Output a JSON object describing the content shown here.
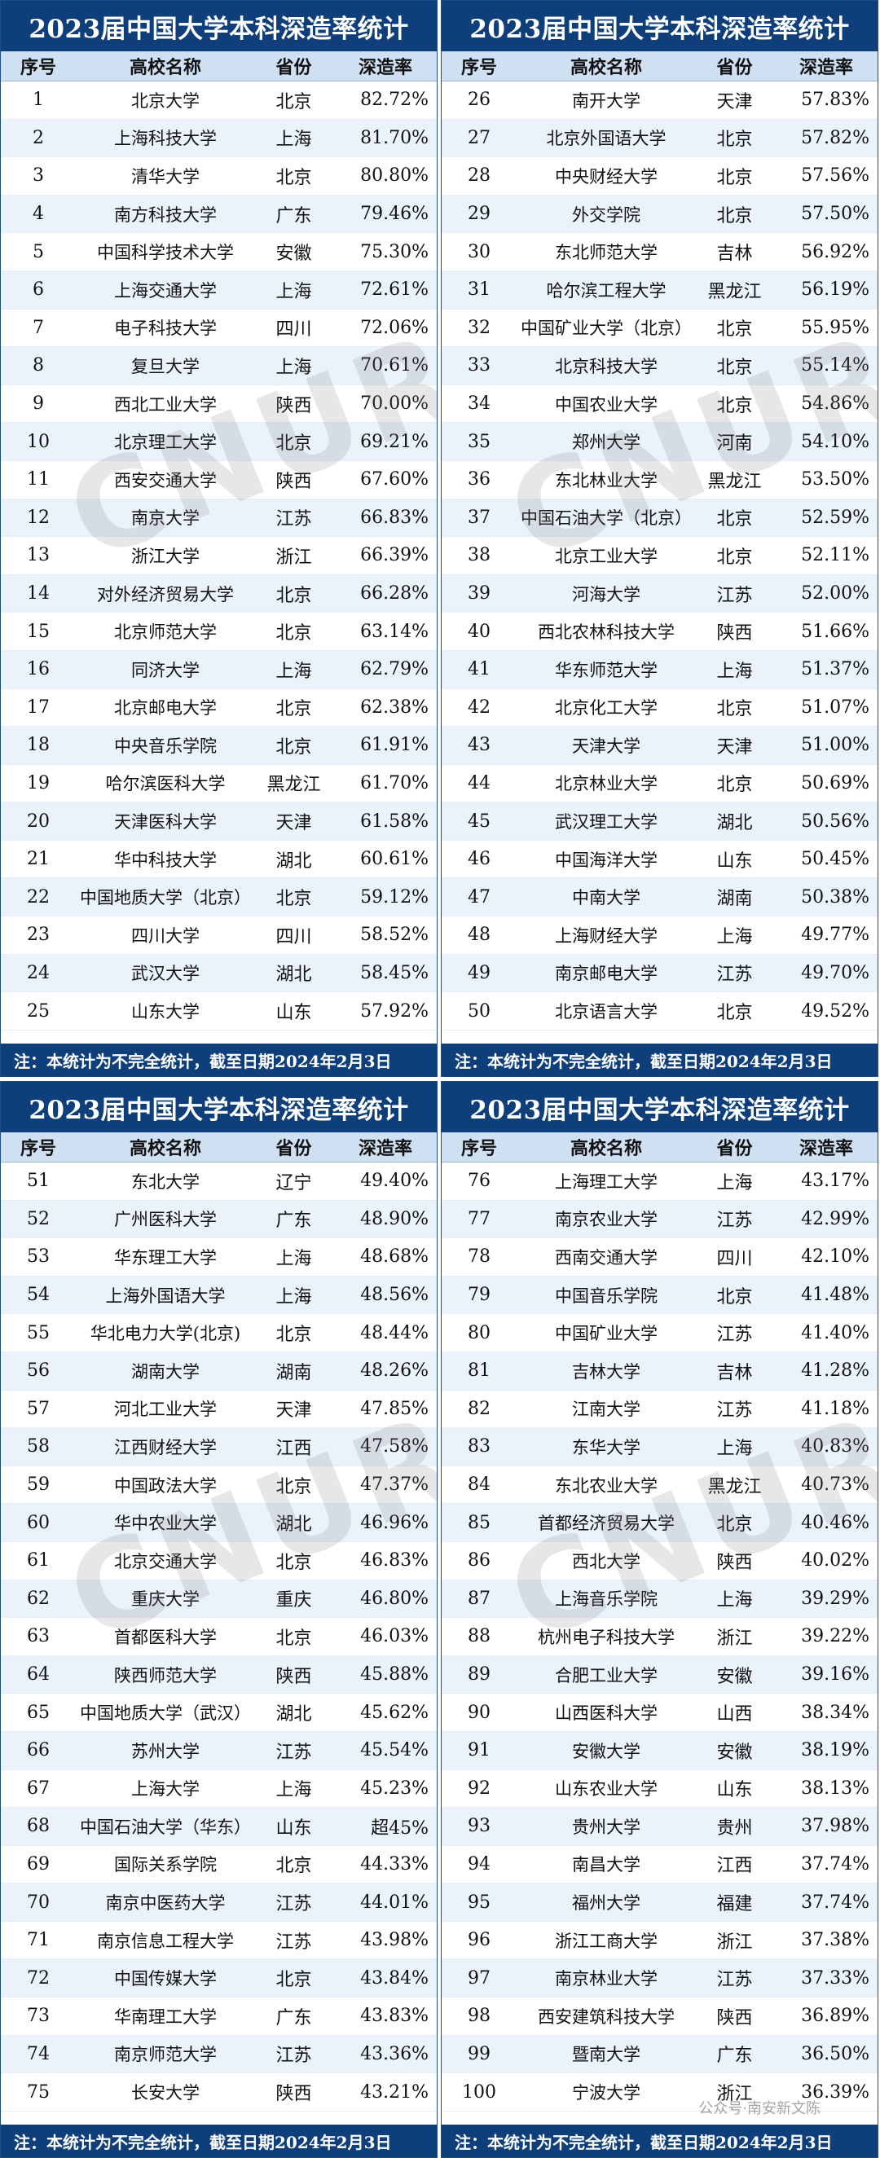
{
  "title": "2023届中国大学本科深造率统计",
  "headers": [
    "序号",
    "高校名称",
    "省份",
    "深造率"
  ],
  "note": "注：本统计为不完全统计，截至日期2024年2月3日",
  "watermark": "CNUR",
  "credit": "公众号·南安新文陈",
  "panels": [
    {
      "rows": [
        {
          "no": "1",
          "name": "北京大学",
          "prov": "北京",
          "rate": "82.72%"
        },
        {
          "no": "2",
          "name": "上海科技大学",
          "prov": "上海",
          "rate": "81.70%"
        },
        {
          "no": "3",
          "name": "清华大学",
          "prov": "北京",
          "rate": "80.80%"
        },
        {
          "no": "4",
          "name": "南方科技大学",
          "prov": "广东",
          "rate": "79.46%"
        },
        {
          "no": "5",
          "name": "中国科学技术大学",
          "prov": "安徽",
          "rate": "75.30%"
        },
        {
          "no": "6",
          "name": "上海交通大学",
          "prov": "上海",
          "rate": "72.61%"
        },
        {
          "no": "7",
          "name": "电子科技大学",
          "prov": "四川",
          "rate": "72.06%"
        },
        {
          "no": "8",
          "name": "复旦大学",
          "prov": "上海",
          "rate": "70.61%"
        },
        {
          "no": "9",
          "name": "西北工业大学",
          "prov": "陕西",
          "rate": "70.00%"
        },
        {
          "no": "10",
          "name": "北京理工大学",
          "prov": "北京",
          "rate": "69.21%"
        },
        {
          "no": "11",
          "name": "西安交通大学",
          "prov": "陕西",
          "rate": "67.60%"
        },
        {
          "no": "12",
          "name": "南京大学",
          "prov": "江苏",
          "rate": "66.83%"
        },
        {
          "no": "13",
          "name": "浙江大学",
          "prov": "浙江",
          "rate": "66.39%"
        },
        {
          "no": "14",
          "name": "对外经济贸易大学",
          "prov": "北京",
          "rate": "66.28%"
        },
        {
          "no": "15",
          "name": "北京师范大学",
          "prov": "北京",
          "rate": "63.14%"
        },
        {
          "no": "16",
          "name": "同济大学",
          "prov": "上海",
          "rate": "62.79%"
        },
        {
          "no": "17",
          "name": "北京邮电大学",
          "prov": "北京",
          "rate": "62.38%"
        },
        {
          "no": "18",
          "name": "中央音乐学院",
          "prov": "北京",
          "rate": "61.91%"
        },
        {
          "no": "19",
          "name": "哈尔滨医科大学",
          "prov": "黑龙江",
          "rate": "61.70%"
        },
        {
          "no": "20",
          "name": "天津医科大学",
          "prov": "天津",
          "rate": "61.58%"
        },
        {
          "no": "21",
          "name": "华中科技大学",
          "prov": "湖北",
          "rate": "60.61%"
        },
        {
          "no": "22",
          "name": "中国地质大学（北京）",
          "prov": "北京",
          "rate": "59.12%"
        },
        {
          "no": "23",
          "name": "四川大学",
          "prov": "四川",
          "rate": "58.52%"
        },
        {
          "no": "24",
          "name": "武汉大学",
          "prov": "湖北",
          "rate": "58.45%"
        },
        {
          "no": "25",
          "name": "山东大学",
          "prov": "山东",
          "rate": "57.92%"
        }
      ]
    },
    {
      "rows": [
        {
          "no": "26",
          "name": "南开大学",
          "prov": "天津",
          "rate": "57.83%"
        },
        {
          "no": "27",
          "name": "北京外国语大学",
          "prov": "北京",
          "rate": "57.82%"
        },
        {
          "no": "28",
          "name": "中央财经大学",
          "prov": "北京",
          "rate": "57.56%"
        },
        {
          "no": "29",
          "name": "外交学院",
          "prov": "北京",
          "rate": "57.50%"
        },
        {
          "no": "30",
          "name": "东北师范大学",
          "prov": "吉林",
          "rate": "56.92%"
        },
        {
          "no": "31",
          "name": "哈尔滨工程大学",
          "prov": "黑龙江",
          "rate": "56.19%"
        },
        {
          "no": "32",
          "name": "中国矿业大学（北京）",
          "prov": "北京",
          "rate": "55.95%"
        },
        {
          "no": "33",
          "name": "北京科技大学",
          "prov": "北京",
          "rate": "55.14%"
        },
        {
          "no": "34",
          "name": "中国农业大学",
          "prov": "北京",
          "rate": "54.86%"
        },
        {
          "no": "35",
          "name": "郑州大学",
          "prov": "河南",
          "rate": "54.10%"
        },
        {
          "no": "36",
          "name": "东北林业大学",
          "prov": "黑龙江",
          "rate": "53.50%"
        },
        {
          "no": "37",
          "name": "中国石油大学（北京）",
          "prov": "北京",
          "rate": "52.59%"
        },
        {
          "no": "38",
          "name": "北京工业大学",
          "prov": "北京",
          "rate": "52.11%"
        },
        {
          "no": "39",
          "name": "河海大学",
          "prov": "江苏",
          "rate": "52.00%"
        },
        {
          "no": "40",
          "name": "西北农林科技大学",
          "prov": "陕西",
          "rate": "51.66%"
        },
        {
          "no": "41",
          "name": "华东师范大学",
          "prov": "上海",
          "rate": "51.37%"
        },
        {
          "no": "42",
          "name": "北京化工大学",
          "prov": "北京",
          "rate": "51.07%"
        },
        {
          "no": "43",
          "name": "天津大学",
          "prov": "天津",
          "rate": "51.00%"
        },
        {
          "no": "44",
          "name": "北京林业大学",
          "prov": "北京",
          "rate": "50.69%"
        },
        {
          "no": "45",
          "name": "武汉理工大学",
          "prov": "湖北",
          "rate": "50.56%"
        },
        {
          "no": "46",
          "name": "中国海洋大学",
          "prov": "山东",
          "rate": "50.45%"
        },
        {
          "no": "47",
          "name": "中南大学",
          "prov": "湖南",
          "rate": "50.38%"
        },
        {
          "no": "48",
          "name": "上海财经大学",
          "prov": "上海",
          "rate": "49.77%"
        },
        {
          "no": "49",
          "name": "南京邮电大学",
          "prov": "江苏",
          "rate": "49.70%"
        },
        {
          "no": "50",
          "name": "北京语言大学",
          "prov": "北京",
          "rate": "49.52%"
        }
      ]
    },
    {
      "rows": [
        {
          "no": "51",
          "name": "东北大学",
          "prov": "辽宁",
          "rate": "49.40%"
        },
        {
          "no": "52",
          "name": "广州医科大学",
          "prov": "广东",
          "rate": "48.90%"
        },
        {
          "no": "53",
          "name": "华东理工大学",
          "prov": "上海",
          "rate": "48.68%"
        },
        {
          "no": "54",
          "name": "上海外国语大学",
          "prov": "上海",
          "rate": "48.56%"
        },
        {
          "no": "55",
          "name": "华北电力大学(北京)",
          "prov": "北京",
          "rate": "48.44%"
        },
        {
          "no": "56",
          "name": "湖南大学",
          "prov": "湖南",
          "rate": "48.26%"
        },
        {
          "no": "57",
          "name": "河北工业大学",
          "prov": "天津",
          "rate": "47.85%"
        },
        {
          "no": "58",
          "name": "江西财经大学",
          "prov": "江西",
          "rate": "47.58%"
        },
        {
          "no": "59",
          "name": "中国政法大学",
          "prov": "北京",
          "rate": "47.37%"
        },
        {
          "no": "60",
          "name": "华中农业大学",
          "prov": "湖北",
          "rate": "46.96%"
        },
        {
          "no": "61",
          "name": "北京交通大学",
          "prov": "北京",
          "rate": "46.83%"
        },
        {
          "no": "62",
          "name": "重庆大学",
          "prov": "重庆",
          "rate": "46.80%"
        },
        {
          "no": "63",
          "name": "首都医科大学",
          "prov": "北京",
          "rate": "46.03%"
        },
        {
          "no": "64",
          "name": "陕西师范大学",
          "prov": "陕西",
          "rate": "45.88%"
        },
        {
          "no": "65",
          "name": "中国地质大学（武汉）",
          "prov": "湖北",
          "rate": "45.62%"
        },
        {
          "no": "66",
          "name": "苏州大学",
          "prov": "江苏",
          "rate": "45.54%"
        },
        {
          "no": "67",
          "name": "上海大学",
          "prov": "上海",
          "rate": "45.23%"
        },
        {
          "no": "68",
          "name": "中国石油大学（华东）",
          "prov": "山东",
          "rate": "超45%"
        },
        {
          "no": "69",
          "name": "国际关系学院",
          "prov": "北京",
          "rate": "44.33%"
        },
        {
          "no": "70",
          "name": "南京中医药大学",
          "prov": "江苏",
          "rate": "44.01%"
        },
        {
          "no": "71",
          "name": "南京信息工程大学",
          "prov": "江苏",
          "rate": "43.98%"
        },
        {
          "no": "72",
          "name": "中国传媒大学",
          "prov": "北京",
          "rate": "43.84%"
        },
        {
          "no": "73",
          "name": "华南理工大学",
          "prov": "广东",
          "rate": "43.83%"
        },
        {
          "no": "74",
          "name": "南京师范大学",
          "prov": "江苏",
          "rate": "43.36%"
        },
        {
          "no": "75",
          "name": "长安大学",
          "prov": "陕西",
          "rate": "43.21%"
        }
      ]
    },
    {
      "rows": [
        {
          "no": "76",
          "name": "上海理工大学",
          "prov": "上海",
          "rate": "43.17%"
        },
        {
          "no": "77",
          "name": "南京农业大学",
          "prov": "江苏",
          "rate": "42.99%"
        },
        {
          "no": "78",
          "name": "西南交通大学",
          "prov": "四川",
          "rate": "42.10%"
        },
        {
          "no": "79",
          "name": "中国音乐学院",
          "prov": "北京",
          "rate": "41.48%"
        },
        {
          "no": "80",
          "name": "中国矿业大学",
          "prov": "江苏",
          "rate": "41.40%"
        },
        {
          "no": "81",
          "name": "吉林大学",
          "prov": "吉林",
          "rate": "41.28%"
        },
        {
          "no": "82",
          "name": "江南大学",
          "prov": "江苏",
          "rate": "41.18%"
        },
        {
          "no": "83",
          "name": "东华大学",
          "prov": "上海",
          "rate": "40.83%"
        },
        {
          "no": "84",
          "name": "东北农业大学",
          "prov": "黑龙江",
          "rate": "40.73%"
        },
        {
          "no": "85",
          "name": "首都经济贸易大学",
          "prov": "北京",
          "rate": "40.46%"
        },
        {
          "no": "86",
          "name": "西北大学",
          "prov": "陕西",
          "rate": "40.02%"
        },
        {
          "no": "87",
          "name": "上海音乐学院",
          "prov": "上海",
          "rate": "39.29%"
        },
        {
          "no": "88",
          "name": "杭州电子科技大学",
          "prov": "浙江",
          "rate": "39.22%"
        },
        {
          "no": "89",
          "name": "合肥工业大学",
          "prov": "安徽",
          "rate": "39.16%"
        },
        {
          "no": "90",
          "name": "山西医科大学",
          "prov": "山西",
          "rate": "38.34%"
        },
        {
          "no": "91",
          "name": "安徽大学",
          "prov": "安徽",
          "rate": "38.19%"
        },
        {
          "no": "92",
          "name": "山东农业大学",
          "prov": "山东",
          "rate": "38.13%"
        },
        {
          "no": "93",
          "name": "贵州大学",
          "prov": "贵州",
          "rate": "37.98%"
        },
        {
          "no": "94",
          "name": "南昌大学",
          "prov": "江西",
          "rate": "37.74%"
        },
        {
          "no": "95",
          "name": "福州大学",
          "prov": "福建",
          "rate": "37.74%"
        },
        {
          "no": "96",
          "name": "浙江工商大学",
          "prov": "浙江",
          "rate": "37.38%"
        },
        {
          "no": "97",
          "name": "南京林业大学",
          "prov": "江苏",
          "rate": "37.33%"
        },
        {
          "no": "98",
          "name": "西安建筑科技大学",
          "prov": "陕西",
          "rate": "36.89%"
        },
        {
          "no": "99",
          "name": "暨南大学",
          "prov": "广东",
          "rate": "36.50%"
        },
        {
          "no": "100",
          "name": "宁波大学",
          "prov": "浙江",
          "rate": "36.39%"
        }
      ]
    }
  ]
}
